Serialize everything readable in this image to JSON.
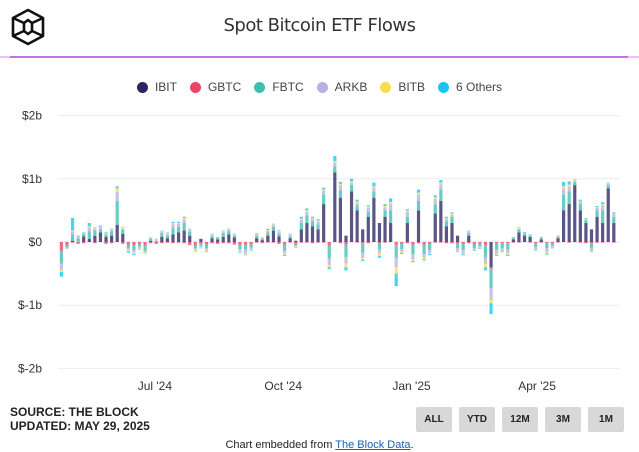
{
  "header": {
    "title": "Spot Bitcoin ETF Flows",
    "logo": "The Block cube logo"
  },
  "legend": [
    {
      "label": "IBIT",
      "color": "#2b2562"
    },
    {
      "label": "GBTC",
      "color": "#ee4266"
    },
    {
      "label": "FBTC",
      "color": "#3dbfb0"
    },
    {
      "label": "ARKB",
      "color": "#b9b1e2"
    },
    {
      "label": "BITB",
      "color": "#fcdc4d"
    },
    {
      "label": "6 Others",
      "color": "#16c6f2"
    }
  ],
  "footer": {
    "source": "SOURCE: THE BLOCK",
    "updated": "UPDATED: MAY 29, 2025",
    "embed_text": "Chart embedded from ",
    "embed_link": "The Block Data",
    "embed_end": "."
  },
  "range_buttons": [
    "ALL",
    "YTD",
    "12M",
    "3M",
    "1M"
  ],
  "chart_data": {
    "type": "bar",
    "stacked": true,
    "title": "Spot Bitcoin ETF Flows",
    "xlabel": "",
    "ylabel": "",
    "unit": "USD millions",
    "ylim": [
      -2000,
      2000
    ],
    "yticks": [
      {
        "v": 2000,
        "label": "$2b"
      },
      {
        "v": 1000,
        "label": "$1b"
      },
      {
        "v": 0,
        "label": "$0"
      },
      {
        "v": -1000,
        "label": "$-1b"
      },
      {
        "v": -2000,
        "label": "$-2b"
      }
    ],
    "xlim": [
      "2024-04-24",
      "2025-05-29"
    ],
    "xticks": [
      {
        "date": "2024-07-01",
        "label": "Jul '24"
      },
      {
        "date": "2024-10-01",
        "label": "Oct '24"
      },
      {
        "date": "2025-01-01",
        "label": "Jan '25"
      },
      {
        "date": "2025-04-01",
        "label": "Apr '25"
      }
    ],
    "grid": true,
    "legend_position": "top",
    "dates": [
      "2024-04-25",
      "2024-04-29",
      "2024-05-03",
      "2024-05-07",
      "2024-05-11",
      "2024-05-15",
      "2024-05-19",
      "2024-05-23",
      "2024-05-27",
      "2024-05-31",
      "2024-06-04",
      "2024-06-08",
      "2024-06-12",
      "2024-06-16",
      "2024-06-20",
      "2024-06-24",
      "2024-06-28",
      "2024-07-02",
      "2024-07-06",
      "2024-07-10",
      "2024-07-14",
      "2024-07-18",
      "2024-07-22",
      "2024-07-26",
      "2024-07-30",
      "2024-08-03",
      "2024-08-07",
      "2024-08-11",
      "2024-08-15",
      "2024-08-19",
      "2024-08-23",
      "2024-08-27",
      "2024-08-31",
      "2024-09-04",
      "2024-09-08",
      "2024-09-12",
      "2024-09-16",
      "2024-09-20",
      "2024-09-24",
      "2024-09-28",
      "2024-10-02",
      "2024-10-06",
      "2024-10-10",
      "2024-10-14",
      "2024-10-18",
      "2024-10-22",
      "2024-10-26",
      "2024-10-30",
      "2024-11-03",
      "2024-11-07",
      "2024-11-11",
      "2024-11-15",
      "2024-11-19",
      "2024-11-23",
      "2024-11-27",
      "2024-12-01",
      "2024-12-05",
      "2024-12-09",
      "2024-12-13",
      "2024-12-17",
      "2024-12-21",
      "2024-12-25",
      "2024-12-29",
      "2025-01-02",
      "2025-01-06",
      "2025-01-10",
      "2025-01-14",
      "2025-01-18",
      "2025-01-22",
      "2025-01-26",
      "2025-01-30",
      "2025-02-03",
      "2025-02-07",
      "2025-02-11",
      "2025-02-15",
      "2025-02-19",
      "2025-02-23",
      "2025-02-27",
      "2025-03-03",
      "2025-03-07",
      "2025-03-11",
      "2025-03-15",
      "2025-03-19",
      "2025-03-23",
      "2025-03-27",
      "2025-03-31",
      "2025-04-04",
      "2025-04-08",
      "2025-04-12",
      "2025-04-16",
      "2025-04-20",
      "2025-04-24",
      "2025-04-28",
      "2025-05-02",
      "2025-05-06",
      "2025-05-10",
      "2025-05-14",
      "2025-05-18",
      "2025-05-22",
      "2025-05-26"
    ],
    "series": [
      {
        "name": "IBIT",
        "values": [
          0,
          0,
          20,
          0,
          90,
          50,
          100,
          150,
          80,
          100,
          270,
          130,
          0,
          0,
          0,
          0,
          20,
          0,
          80,
          60,
          120,
          150,
          180,
          100,
          0,
          50,
          0,
          60,
          40,
          80,
          120,
          70,
          0,
          0,
          0,
          60,
          30,
          100,
          180,
          90,
          0,
          60,
          20,
          200,
          300,
          250,
          200,
          600,
          0,
          1100,
          700,
          100,
          800,
          500,
          200,
          400,
          700,
          300,
          400,
          300,
          0,
          0,
          300,
          0,
          500,
          0,
          0,
          450,
          650,
          250,
          300,
          100,
          0,
          100,
          0,
          0,
          0,
          -400,
          0,
          0,
          0,
          40,
          150,
          100,
          80,
          0,
          40,
          0,
          0,
          60,
          500,
          600,
          900,
          500,
          300,
          200,
          400,
          300,
          850,
          300
        ]
      },
      {
        "name": "GBTC",
        "values": [
          -140,
          -60,
          -10,
          -30,
          -20,
          0,
          -20,
          0,
          -30,
          -20,
          0,
          -30,
          -40,
          -50,
          -30,
          -60,
          -20,
          -30,
          -20,
          -10,
          -20,
          -10,
          -20,
          -50,
          -60,
          -30,
          -40,
          -20,
          -30,
          -20,
          -20,
          -40,
          -50,
          -40,
          -40,
          -10,
          -20,
          -10,
          -10,
          -30,
          -40,
          -10,
          -30,
          -10,
          -10,
          -20,
          -10,
          -10,
          -60,
          0,
          -20,
          -40,
          0,
          -10,
          -20,
          -20,
          0,
          -20,
          -10,
          0,
          -50,
          -30,
          -20,
          -40,
          -20,
          -40,
          -30,
          -10,
          -10,
          -20,
          -20,
          -20,
          -30,
          -20,
          -40,
          -30,
          -50,
          -30,
          -20,
          -20,
          -20,
          -10,
          -10,
          0,
          -10,
          -20,
          -10,
          -20,
          -20,
          -10,
          0,
          -10,
          0,
          -10,
          -20,
          -20,
          -10,
          -10,
          0,
          -10
        ]
      },
      {
        "name": "FBTC",
        "values": [
          -200,
          -30,
          100,
          60,
          40,
          120,
          80,
          50,
          40,
          70,
          380,
          60,
          -60,
          -80,
          -40,
          -80,
          30,
          20,
          60,
          40,
          100,
          90,
          120,
          60,
          -40,
          -30,
          -60,
          30,
          20,
          60,
          50,
          30,
          -60,
          -80,
          -50,
          40,
          20,
          50,
          60,
          40,
          -100,
          30,
          -30,
          100,
          120,
          80,
          80,
          150,
          -200,
          100,
          120,
          -200,
          100,
          80,
          -150,
          80,
          100,
          -100,
          100,
          200,
          -200,
          -80,
          100,
          -150,
          150,
          -150,
          -100,
          150,
          180,
          80,
          100,
          -80,
          -100,
          40,
          -60,
          -40,
          -200,
          -300,
          -100,
          -80,
          -100,
          20,
          40,
          30,
          20,
          -60,
          20,
          -80,
          -40,
          20,
          250,
          200,
          50,
          100,
          40,
          -80,
          100,
          200,
          50,
          100
        ]
      },
      {
        "name": "ARKB",
        "values": [
          -100,
          -20,
          40,
          40,
          10,
          60,
          30,
          30,
          20,
          20,
          140,
          20,
          -30,
          -40,
          -30,
          -20,
          10,
          10,
          20,
          30,
          60,
          50,
          60,
          30,
          -20,
          -20,
          -30,
          20,
          10,
          20,
          20,
          10,
          -30,
          -60,
          -30,
          20,
          10,
          30,
          30,
          30,
          -40,
          20,
          -10,
          50,
          60,
          40,
          40,
          60,
          -100,
          60,
          80,
          -100,
          40,
          40,
          -80,
          60,
          60,
          -60,
          50,
          100,
          -150,
          -40,
          80,
          -80,
          100,
          -60,
          -50,
          80,
          80,
          40,
          30,
          -40,
          -50,
          20,
          -20,
          -20,
          -100,
          -190,
          -60,
          -40,
          -60,
          10,
          20,
          20,
          10,
          -40,
          10,
          -60,
          -20,
          10,
          100,
          80,
          20,
          40,
          20,
          -40,
          40,
          80,
          20,
          40
        ]
      },
      {
        "name": "BITB",
        "values": [
          -30,
          0,
          20,
          10,
          5,
          20,
          10,
          10,
          10,
          10,
          60,
          10,
          -20,
          -20,
          -10,
          -10,
          5,
          10,
          10,
          10,
          20,
          10,
          20,
          10,
          -20,
          -10,
          -20,
          10,
          5,
          10,
          10,
          10,
          -20,
          -20,
          -10,
          10,
          5,
          10,
          10,
          20,
          -20,
          10,
          -10,
          20,
          20,
          10,
          20,
          20,
          -40,
          20,
          20,
          -60,
          20,
          20,
          -30,
          20,
          20,
          -40,
          20,
          30,
          -100,
          -20,
          20,
          -30,
          30,
          -20,
          -10,
          30,
          30,
          10,
          20,
          -10,
          -10,
          10,
          -10,
          -10,
          -50,
          -50,
          -20,
          -10,
          -20,
          5,
          10,
          5,
          5,
          -10,
          5,
          -20,
          -10,
          5,
          30,
          30,
          10,
          10,
          10,
          -10,
          10,
          20,
          10,
          10
        ]
      },
      {
        "name": "6 Others",
        "values": [
          -80,
          0,
          200,
          0,
          10,
          50,
          10,
          20,
          10,
          10,
          30,
          10,
          -20,
          -20,
          -10,
          -10,
          5,
          10,
          10,
          10,
          20,
          20,
          20,
          10,
          -10,
          -10,
          -10,
          10,
          5,
          10,
          10,
          10,
          -10,
          -10,
          -10,
          10,
          5,
          20,
          10,
          10,
          -20,
          10,
          -10,
          30,
          30,
          20,
          20,
          30,
          -30,
          80,
          30,
          -50,
          40,
          30,
          -20,
          20,
          60,
          -30,
          30,
          60,
          -200,
          -20,
          20,
          -20,
          50,
          -20,
          -20,
          30,
          40,
          20,
          20,
          -10,
          -20,
          10,
          -10,
          -10,
          -50,
          -170,
          -20,
          -10,
          -20,
          5,
          10,
          5,
          5,
          -10,
          5,
          -20,
          -10,
          5,
          70,
          50,
          10,
          20,
          10,
          -10,
          20,
          30,
          10,
          20
        ]
      }
    ]
  }
}
